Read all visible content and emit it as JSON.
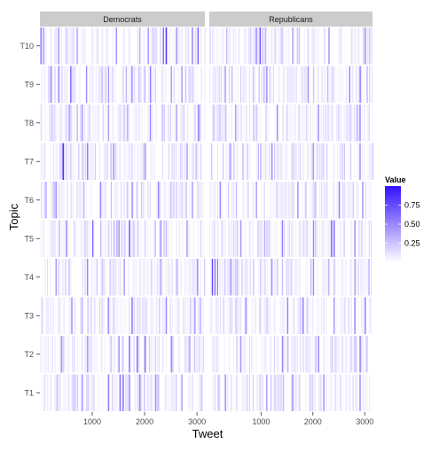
{
  "chart_data": {
    "type": "heatmap",
    "xlabel": "Tweet",
    "ylabel": "Topic",
    "facets": [
      "Democrats",
      "Republicans"
    ],
    "y_categories": [
      "T1",
      "T2",
      "T3",
      "T4",
      "T5",
      "T6",
      "T7",
      "T8",
      "T9",
      "T10"
    ],
    "x_ticks": [
      1000,
      2000,
      3000
    ],
    "x_range_per_facet": [
      1,
      3150
    ],
    "legend": {
      "title": "Value",
      "ticks": [
        0.25,
        0.5,
        0.75
      ],
      "tick_labels": [
        "0.25",
        "0.50",
        "0.75"
      ],
      "range": [
        0,
        1
      ],
      "low_color": "#ffffff",
      "high_color": "#3311ff",
      "placement": "right"
    },
    "grid": true,
    "strip_color": "#cccccc",
    "notes_hidden": [],
    "highlights": {
      "Democrats": {
        "T10": [
          [
            10,
            0.55
          ],
          [
            60,
            0.45
          ],
          [
            350,
            0.5
          ],
          [
            700,
            0.4
          ],
          [
            1450,
            0.5
          ],
          [
            2060,
            0.45
          ],
          [
            2350,
            0.6
          ],
          [
            2400,
            0.85
          ],
          [
            2600,
            0.5
          ],
          [
            2900,
            0.6
          ],
          [
            3010,
            0.7
          ]
        ],
        "T9": [
          [
            200,
            0.5
          ],
          [
            350,
            0.55
          ],
          [
            580,
            0.7
          ],
          [
            880,
            0.5
          ],
          [
            1300,
            0.45
          ],
          [
            1750,
            0.5
          ],
          [
            2100,
            0.55
          ],
          [
            2500,
            0.45
          ],
          [
            2700,
            0.5
          ]
        ],
        "T8": [
          [
            550,
            0.5
          ],
          [
            800,
            0.45
          ],
          [
            1300,
            0.4
          ],
          [
            2100,
            0.5
          ],
          [
            2600,
            0.45
          ],
          [
            3020,
            0.6
          ]
        ],
        "T7": [
          [
            420,
            0.5
          ],
          [
            440,
            0.85
          ],
          [
            900,
            0.6
          ],
          [
            1400,
            0.5
          ],
          [
            2000,
            0.45
          ],
          [
            2800,
            0.5
          ]
        ],
        "T6": [
          [
            300,
            0.45
          ],
          [
            1150,
            0.5
          ],
          [
            1750,
            0.45
          ],
          [
            2250,
            0.5
          ],
          [
            2900,
            0.45
          ]
        ],
        "T5": [
          [
            500,
            0.5
          ],
          [
            1000,
            0.65
          ],
          [
            1500,
            0.5
          ],
          [
            1700,
            0.8
          ],
          [
            2300,
            0.5
          ],
          [
            2800,
            0.45
          ]
        ],
        "T4": [
          [
            300,
            0.45
          ],
          [
            900,
            0.55
          ],
          [
            1600,
            0.5
          ],
          [
            2300,
            0.45
          ],
          [
            3000,
            0.5
          ]
        ],
        "T3": [
          [
            600,
            0.5
          ],
          [
            1300,
            0.45
          ],
          [
            1750,
            0.65
          ],
          [
            2400,
            0.5
          ],
          [
            2950,
            0.45
          ]
        ],
        "T2": [
          [
            400,
            0.5
          ],
          [
            900,
            0.45
          ],
          [
            1500,
            0.5
          ],
          [
            1700,
            0.65
          ],
          [
            1850,
            0.6
          ],
          [
            2000,
            0.7
          ],
          [
            2500,
            0.5
          ],
          [
            2850,
            0.45
          ]
        ],
        "T1": [
          [
            800,
            0.5
          ],
          [
            1300,
            0.55
          ],
          [
            1520,
            0.6
          ],
          [
            1580,
            0.65
          ],
          [
            1700,
            0.55
          ],
          [
            1900,
            0.6
          ],
          [
            2200,
            0.5
          ],
          [
            2700,
            0.45
          ]
        ]
      },
      "Republicans": {
        "T10": [
          [
            900,
            0.5
          ],
          [
            970,
            0.8
          ],
          [
            1600,
            0.45
          ],
          [
            2300,
            0.5
          ],
          [
            3000,
            0.55
          ]
        ],
        "T9": [
          [
            300,
            0.45
          ],
          [
            1100,
            0.5
          ],
          [
            1900,
            0.45
          ],
          [
            2700,
            0.55
          ],
          [
            2900,
            0.6
          ]
        ],
        "T8": [
          [
            500,
            0.45
          ],
          [
            1300,
            0.5
          ],
          [
            2100,
            0.45
          ],
          [
            2900,
            0.5
          ]
        ],
        "T7": [
          [
            400,
            0.45
          ],
          [
            1200,
            0.5
          ],
          [
            2000,
            0.45
          ],
          [
            2900,
            0.5
          ]
        ],
        "T6": [
          [
            200,
            0.5
          ],
          [
            900,
            0.45
          ],
          [
            1700,
            0.5
          ],
          [
            2500,
            0.55
          ],
          [
            2950,
            0.5
          ]
        ],
        "T5": [
          [
            600,
            0.5
          ],
          [
            1400,
            0.55
          ],
          [
            2000,
            0.5
          ],
          [
            2350,
            0.75
          ],
          [
            2400,
            0.7
          ],
          [
            2800,
            0.5
          ]
        ],
        "T4": [
          [
            50,
            0.75
          ],
          [
            100,
            0.6
          ],
          [
            150,
            0.55
          ],
          [
            400,
            0.5
          ],
          [
            1200,
            0.45
          ],
          [
            2000,
            0.5
          ],
          [
            2800,
            0.45
          ]
        ],
        "T3": [
          [
            700,
            0.5
          ],
          [
            1500,
            0.55
          ],
          [
            1800,
            0.6
          ],
          [
            2400,
            0.5
          ],
          [
            2800,
            0.55
          ],
          [
            3000,
            0.6
          ]
        ],
        "T2": [
          [
            600,
            0.45
          ],
          [
            1400,
            0.5
          ],
          [
            2100,
            0.55
          ],
          [
            2900,
            0.6
          ]
        ],
        "T1": [
          [
            300,
            0.5
          ],
          [
            1100,
            0.45
          ],
          [
            1600,
            0.5
          ],
          [
            2200,
            0.45
          ],
          [
            2900,
            0.5
          ]
        ]
      }
    }
  }
}
